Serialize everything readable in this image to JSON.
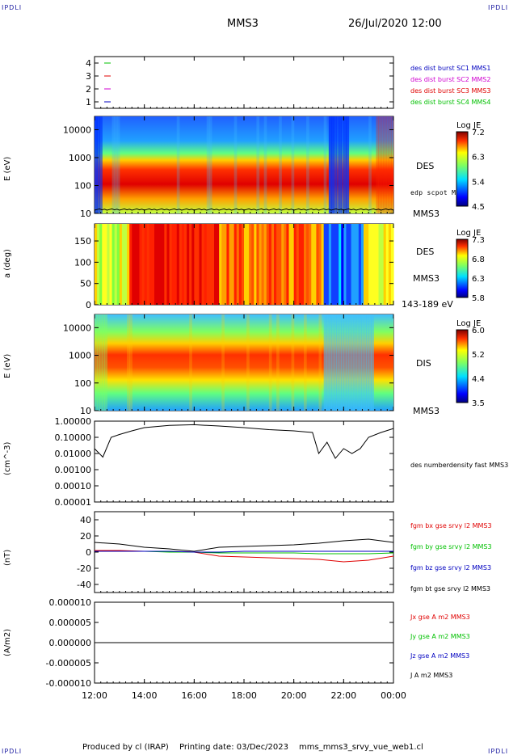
{
  "corners": {
    "tl": "IPDLI",
    "tr": "IPDLI",
    "bl": "IPDLI",
    "br": "IPDLI"
  },
  "header": {
    "spacecraft": "MMS3",
    "datetime": "26/Jul/2020 12:00"
  },
  "footer": {
    "produced_by": "Produced by cl (IRAP)",
    "printing_date": "Printing date: 03/Dec/2023",
    "file": "mms_mms3_srvy_vue_web1.cl"
  },
  "time_axis": {
    "ticks": [
      "12:00",
      "14:00",
      "16:00",
      "18:00",
      "20:00",
      "22:00",
      "00:00"
    ]
  },
  "colors": {
    "red": "#e00000",
    "green": "#00c000",
    "blue": "#0000c0",
    "magenta": "#d000d0",
    "black": "#000000"
  },
  "panels": {
    "availability": {
      "yticks": [
        "1",
        "2",
        "3",
        "4"
      ],
      "legend": [
        {
          "text": "des dist burst SC1 MMS1",
          "color": "#0000c0"
        },
        {
          "text": "des dist burst SC2 MMS2",
          "color": "#d000d0"
        },
        {
          "text": "des dist burst SC3 MMS3",
          "color": "#e00000"
        },
        {
          "text": "des dist burst SC4 MMS4",
          "color": "#00c000"
        }
      ]
    },
    "des_energy": {
      "ylabel": "E (eV)",
      "yticks": [
        "10",
        "100",
        "1000",
        "10000"
      ],
      "name": "DES",
      "potential_label": "edp scpot MMS3",
      "sc": "MMS3",
      "cbar_title": "Log JE",
      "cbar_ticks": [
        "7.2",
        "6.3",
        "5.4",
        "4.5"
      ]
    },
    "des_pitch": {
      "ylabel": "a (deg)",
      "yticks": [
        "0",
        "50",
        "100",
        "150"
      ],
      "name": "DES",
      "sc": "MMS3",
      "energy_range": "143-189 eV",
      "cbar_title": "Log JE",
      "cbar_ticks": [
        "7.3",
        "6.8",
        "6.3",
        "5.8"
      ]
    },
    "dis_energy": {
      "ylabel": "E (eV)",
      "yticks": [
        "10",
        "100",
        "1000",
        "10000"
      ],
      "name": "DIS",
      "sc": "MMS3",
      "cbar_title": "Log JE",
      "cbar_ticks": [
        "6.0",
        "5.2",
        "4.4",
        "3.5"
      ]
    },
    "density": {
      "ylabel": "(cm^-3)",
      "yticks": [
        "0.00001",
        "0.00010",
        "0.00100",
        "0.01000",
        "0.10000",
        "1.00000"
      ],
      "legend": [
        {
          "text": "des numberdensity fast MMS3",
          "color": "#000000"
        }
      ]
    },
    "bfield": {
      "ylabel": "(nT)",
      "yticks": [
        "-40",
        "-20",
        "0",
        "20",
        "40"
      ],
      "legend": [
        {
          "text": "fgm bx gse srvy l2 MMS3",
          "color": "#e00000"
        },
        {
          "text": "fgm by gse srvy l2 MMS3",
          "color": "#00c000"
        },
        {
          "text": "fgm bz gse srvy l2 MMS3",
          "color": "#0000c0"
        },
        {
          "text": "fgm bt gse srvy l2 MMS3",
          "color": "#000000"
        }
      ]
    },
    "current": {
      "ylabel": "(A/m2)",
      "yticks": [
        "-0.000010",
        "-0.000005",
        "0.000000",
        "0.000005",
        "0.000010"
      ],
      "legend": [
        {
          "text": "Jx gse A m2 MMS3",
          "color": "#e00000"
        },
        {
          "text": "Jy gse A m2 MMS3",
          "color": "#00c000"
        },
        {
          "text": "Jz gse A m2 MMS3",
          "color": "#0000c0"
        },
        {
          "text": "J A m2 MMS3",
          "color": "#000000"
        }
      ]
    }
  },
  "chart_data": [
    {
      "type": "scatter",
      "panel": "availability",
      "note_values": "burst availability markers per spacecraft (no burst data shown)",
      "ylim": [
        0.5,
        4.5
      ],
      "series": []
    },
    {
      "type": "heatmap",
      "panel": "des_energy",
      "yscale": "log",
      "ylim": [
        10,
        30000
      ],
      "zlabel": "Log JE",
      "zlim": [
        4.5,
        7.2
      ]
    },
    {
      "type": "heatmap",
      "panel": "des_pitch",
      "ylim": [
        0,
        180
      ],
      "zlabel": "Log JE",
      "zlim": [
        5.8,
        7.3
      ]
    },
    {
      "type": "heatmap",
      "panel": "dis_energy",
      "yscale": "log",
      "ylim": [
        10,
        30000
      ],
      "zlabel": "Log JE",
      "zlim": [
        3.5,
        6.0
      ]
    },
    {
      "type": "line",
      "panel": "density",
      "yscale": "log",
      "ylim": [
        1e-05,
        1.0
      ],
      "x": [
        "12:00",
        "12:20",
        "12:40",
        "13:00",
        "13:30",
        "14:00",
        "15:00",
        "16:00",
        "17:00",
        "18:00",
        "19:00",
        "20:00",
        "20:45",
        "21:00",
        "21:20",
        "21:40",
        "22:00",
        "22:20",
        "22:40",
        "23:00",
        "23:30",
        "00:00"
      ],
      "series": [
        {
          "name": "des numberdensity fast MMS3",
          "values": [
            0.02,
            0.006,
            0.1,
            0.15,
            0.25,
            0.4,
            0.55,
            0.6,
            0.5,
            0.4,
            0.3,
            0.25,
            0.2,
            0.01,
            0.05,
            0.005,
            0.02,
            0.01,
            0.02,
            0.1,
            0.2,
            0.35
          ]
        }
      ]
    },
    {
      "type": "line",
      "panel": "bfield",
      "ylim": [
        -50,
        50
      ],
      "x": [
        "12:00",
        "13:00",
        "14:00",
        "15:00",
        "16:00",
        "17:00",
        "18:00",
        "19:00",
        "20:00",
        "21:00",
        "22:00",
        "23:00",
        "00:00"
      ],
      "series": [
        {
          "name": "fgm bx gse srvy l2 MMS3",
          "values": [
            2,
            2,
            1,
            1,
            0,
            -5,
            -6,
            -7,
            -8,
            -9,
            -12,
            -10,
            -5
          ]
        },
        {
          "name": "fgm by gse srvy l2 MMS3",
          "values": [
            1,
            1,
            1,
            0,
            0,
            -1,
            -1,
            -1,
            -1,
            -2,
            -2,
            -2,
            -1
          ]
        },
        {
          "name": "fgm bz gse srvy l2 MMS3",
          "values": [
            1,
            1,
            1,
            1,
            0,
            0,
            1,
            1,
            1,
            1,
            1,
            1,
            1
          ]
        },
        {
          "name": "fgm bt gse srvy l2 MMS3",
          "values": [
            12,
            10,
            6,
            4,
            1,
            6,
            7,
            8,
            9,
            11,
            14,
            16,
            12
          ]
        }
      ]
    },
    {
      "type": "line",
      "panel": "current",
      "ylim": [
        -1e-05,
        1e-05
      ],
      "x": [
        "12:00",
        "18:00",
        "00:00"
      ],
      "series": [
        {
          "name": "J A m2 MMS3",
          "values": [
            0,
            0,
            0
          ]
        }
      ]
    }
  ]
}
